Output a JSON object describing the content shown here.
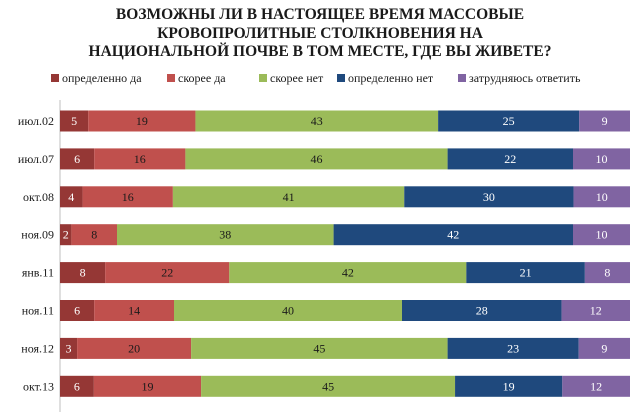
{
  "chart_data": {
    "type": "bar",
    "orientation": "horizontal",
    "stacked": true,
    "normalized": true,
    "title_lines": [
      "ВОЗМОЖНЫ ЛИ В НАСТОЯЩЕЕ ВРЕМЯ МАССОВЫЕ",
      "КРОВОПРОЛИТНЫЕ СТОЛКНОВЕНИЯ НА",
      "НАЦИОНАЛЬНОЙ ПОЧВЕ В ТОМ МЕСТЕ, ГДЕ ВЫ ЖИВЕТЕ?"
    ],
    "legend_position": "top",
    "categories": [
      "июл.02",
      "июл.07",
      "окт.08",
      "ноя.09",
      "янв.11",
      "ноя.11",
      "ноя.12",
      "окт.13"
    ],
    "series": [
      {
        "name": "определенно да",
        "color": "#953735",
        "label_color": "#ffffff",
        "values": [
          5,
          6,
          4,
          2,
          8,
          6,
          3,
          6
        ]
      },
      {
        "name": "скорее да",
        "color": "#c0504d",
        "label_color": "#1a1a1a",
        "values": [
          19,
          16,
          16,
          8,
          22,
          14,
          20,
          19
        ]
      },
      {
        "name": "скорее нет",
        "color": "#9bbb59",
        "label_color": "#1a1a1a",
        "values": [
          43,
          46,
          41,
          38,
          42,
          40,
          45,
          45
        ]
      },
      {
        "name": "определенно нет",
        "color": "#1f497d",
        "label_color": "#ffffff",
        "values": [
          25,
          22,
          30,
          42,
          21,
          28,
          23,
          19
        ]
      },
      {
        "name": "затрудняюсь ответить",
        "color": "#8064a2",
        "label_color": "#ffffff",
        "values": [
          9,
          10,
          10,
          10,
          8,
          12,
          9,
          12
        ]
      }
    ]
  }
}
